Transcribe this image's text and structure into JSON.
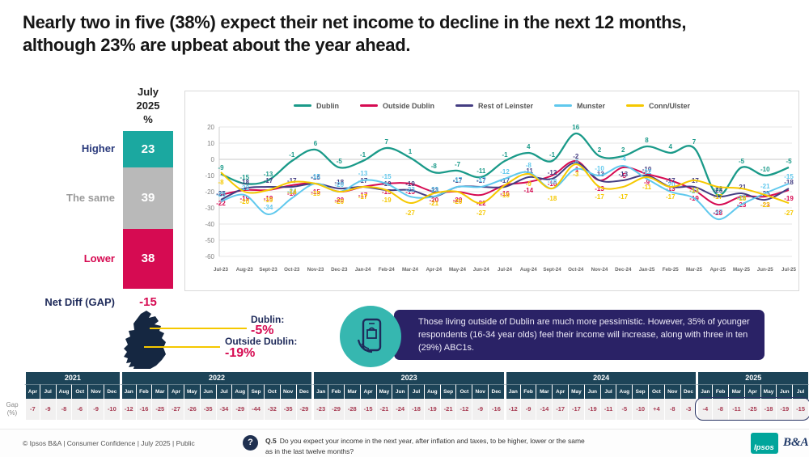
{
  "title": "Nearly two in five (38%) expect their net income to decline in the next 12 months,\nalthough 23% are upbeat about the year ahead.",
  "chart_data": [
    {
      "type": "line",
      "title": "",
      "legend_position": "top",
      "ylim": [
        -60,
        20
      ],
      "yticks": [
        20,
        10,
        0,
        -10,
        -20,
        -30,
        -40,
        -50,
        -60
      ],
      "grid": true,
      "categories": [
        "Jul-23",
        "Aug-23",
        "Sept-23",
        "Oct-23",
        "Nov-23",
        "Dec-23",
        "Jan-24",
        "Feb-24",
        "Mar-24",
        "Apr-24",
        "May-24",
        "Jun-24",
        "Jul-24",
        "Aug-24",
        "Sept-24",
        "Oct-24",
        "Nov-24",
        "Dec-24",
        "Jan-25",
        "Feb-25",
        "Mar-25",
        "Apr-25",
        "May-25",
        "Jun-25",
        "Jul-25"
      ],
      "series": [
        {
          "name": "Dublin",
          "color": "#1a9a89",
          "values": [
            -9,
            -15,
            -13,
            -1,
            6,
            -5,
            -1,
            7,
            1,
            -8,
            -7,
            -11,
            -1,
            4,
            -1,
            16,
            2,
            2,
            8,
            4,
            7,
            -22,
            -5,
            -10,
            -5
          ]
        },
        {
          "name": "Outside Dublin",
          "color": "#d60b52",
          "values": [
            -22,
            -19,
            -19,
            -16,
            -15,
            -20,
            -17,
            -15,
            -15,
            -20,
            -20,
            -22,
            -16,
            -14,
            -10,
            -1,
            -13,
            -5,
            -9,
            -13,
            -19,
            -28,
            -23,
            -23,
            -19
          ]
        },
        {
          "name": "Rest of Leinster",
          "color": "#443d82",
          "values": [
            -25,
            -18,
            -17,
            -17,
            -15,
            -18,
            -17,
            -19,
            -19,
            -23,
            -17,
            -17,
            -17,
            -11,
            -12,
            -2,
            -13,
            -13,
            -10,
            -17,
            -17,
            -23,
            -21,
            -25,
            -18
          ]
        },
        {
          "name": "Munster",
          "color": "#5fc8ed",
          "values": [
            -26,
            -22,
            -34,
            -24,
            -15,
            -20,
            -13,
            -15,
            -23,
            -23,
            -17,
            -17,
            -12,
            -8,
            -18,
            -6,
            -10,
            -4,
            -12,
            -20,
            -24,
            -37,
            -28,
            -21,
            -15
          ]
        },
        {
          "name": "Conn/Ulster",
          "color": "#f5c800",
          "values": [
            -8,
            -20,
            -19,
            -14,
            -15,
            -20,
            -17,
            -19,
            -27,
            -21,
            -20,
            -27,
            -16,
            -9,
            -18,
            -3,
            -17,
            -17,
            -11,
            -17,
            -13,
            -17,
            -18,
            -22,
            -27
          ]
        }
      ]
    },
    {
      "type": "bar",
      "title": "July\n2025\n%",
      "categories": [
        "Higher",
        "The same",
        "Lower"
      ],
      "values": [
        23,
        39,
        38
      ],
      "colors": [
        "#1ba8a0",
        "#b9b9b9",
        "#d60b52"
      ],
      "label_colors": [
        "#2a3a7c",
        "#9b9b9b",
        "#d60b52"
      ],
      "net_diff_label": "Net Diff (GAP)",
      "net_diff_value": "-15"
    },
    {
      "type": "table",
      "row_label": "Gap\n(%)",
      "highlight_group": "2025",
      "years": [
        {
          "year": "2021",
          "months": [
            "Apr",
            "Jul",
            "Aug",
            "Oct",
            "Nov",
            "Dec"
          ],
          "values": [
            "-7",
            "-9",
            "-8",
            "-6",
            "-9",
            "-10"
          ]
        },
        {
          "year": "2022",
          "months": [
            "Jan",
            "Feb",
            "Mar",
            "Apr",
            "May",
            "Jun",
            "Jul",
            "Aug",
            "Sep",
            "Oct",
            "Nov",
            "Dec"
          ],
          "values": [
            "-12",
            "-16",
            "-25",
            "-27",
            "-26",
            "-35",
            "-34",
            "-29",
            "-44",
            "-32",
            "-35",
            "-29"
          ]
        },
        {
          "year": "2023",
          "months": [
            "Jan",
            "Feb",
            "Mar",
            "Apr",
            "May",
            "Jun",
            "Jul",
            "Aug",
            "Sep",
            "Oct",
            "Nov",
            "Dec"
          ],
          "values": [
            "-23",
            "-29",
            "-28",
            "-15",
            "-21",
            "-24",
            "-18",
            "-19",
            "-21",
            "-12",
            "-9",
            "-16"
          ]
        },
        {
          "year": "2024",
          "months": [
            "Jan",
            "Feb",
            "Mar",
            "Apr",
            "May",
            "Jun",
            "Jul",
            "Aug",
            "Sep",
            "Oct",
            "Nov",
            "Dec"
          ],
          "values": [
            "-12",
            "-9",
            "-14",
            "-17",
            "-17",
            "-19",
            "-11",
            "-5",
            "-10",
            "+4",
            "-8",
            "-3"
          ]
        },
        {
          "year": "2025",
          "months": [
            "Jan",
            "Feb",
            "Mar",
            "Apr",
            "May",
            "Jun",
            "Jul"
          ],
          "values": [
            "-4",
            "-8",
            "-11",
            "-25",
            "-18",
            "-19",
            "-15"
          ]
        }
      ]
    }
  ],
  "map_callout": {
    "dublin_label": "Dublin:",
    "dublin_value": "-5%",
    "outside_label": "Outside Dublin:",
    "outside_value": "-19%"
  },
  "insight": {
    "text": "Those living outside of Dublin are much more pessimistic. However, 35% of younger respondents (16-34 year olds) feel their income will increase, along with three in ten (29%) ABC1s."
  },
  "footer": {
    "copyright": "© Ipsos B&A | Consumer Confidence | July 2025 |  Public",
    "q_icon": "?",
    "q_label": "Q.5",
    "question": "Do you expect your income in the next year, after inflation and taxes, to be higher, lower or the same\nas in the last twelve months?",
    "logo_ipsos": "Ipsos",
    "logo_ba": "B&A"
  }
}
